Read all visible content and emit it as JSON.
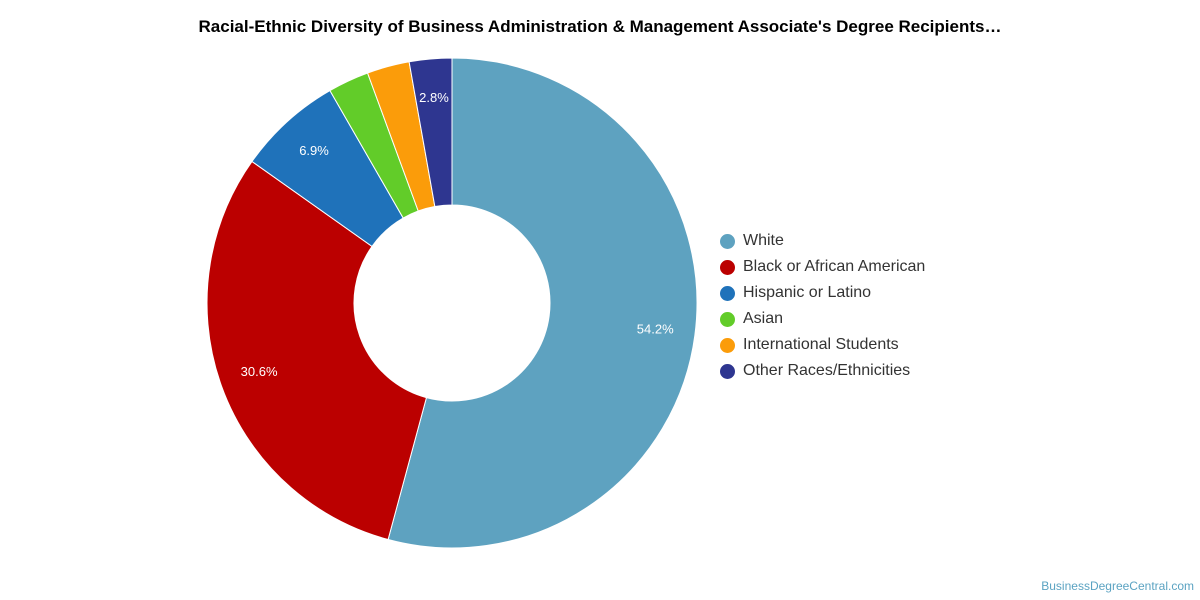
{
  "chart_data": {
    "type": "pie",
    "title": "Racial-Ethnic Diversity of Business Administration & Management Associate's Degree Recipients…",
    "donut": true,
    "legend_position": "right",
    "categories": [
      "White",
      "Black or African American",
      "Hispanic or Latino",
      "Asian",
      "International Students",
      "Other Races/Ethnicities"
    ],
    "values": [
      54.2,
      30.6,
      6.9,
      2.7,
      2.8,
      2.8
    ],
    "data_labels": [
      "54.2%",
      "30.6%",
      "6.9%",
      "",
      "",
      "2.8%"
    ],
    "colors": [
      "#5ea2c0",
      "#bb0000",
      "#1f72ba",
      "#62cc29",
      "#fb9c0a",
      "#2e3690"
    ]
  },
  "credit": "BusinessDegreeCentral.com"
}
